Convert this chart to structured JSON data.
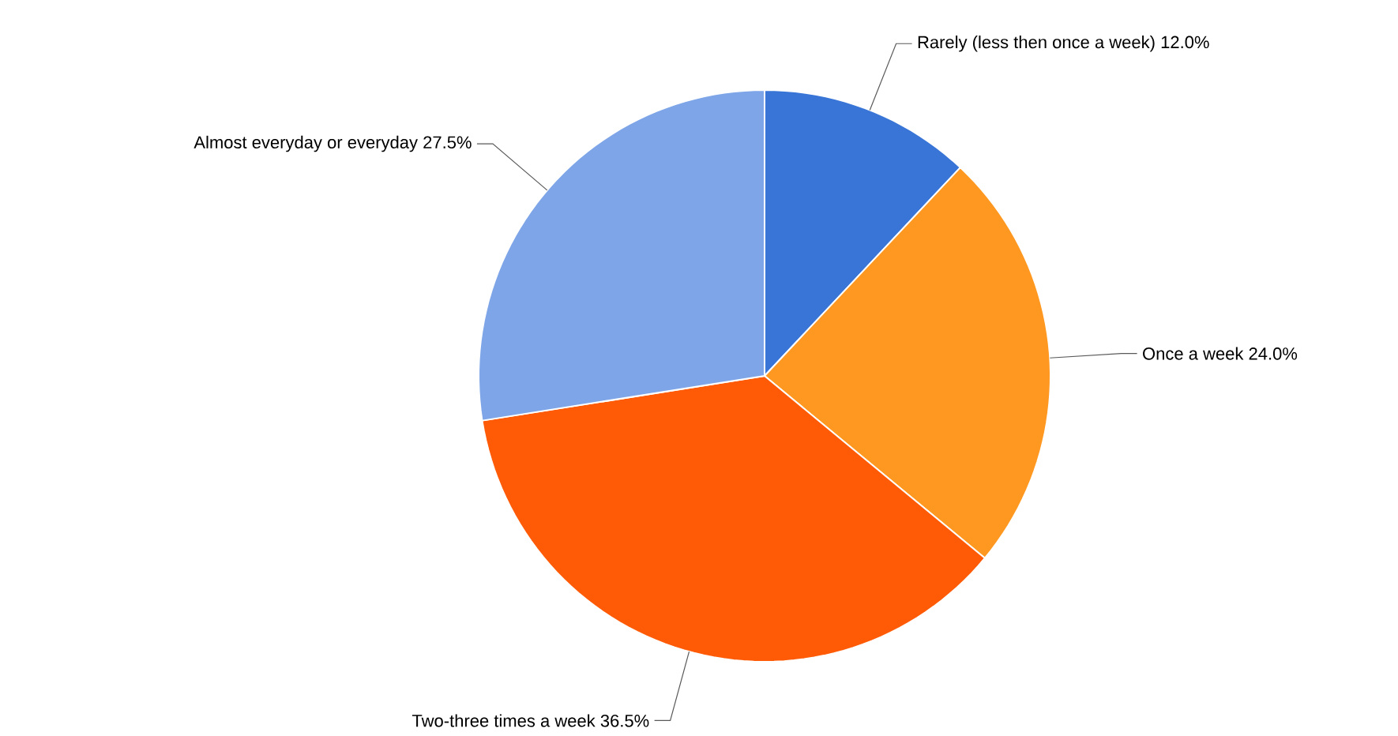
{
  "chart_data": {
    "type": "pie",
    "categories": [
      "Rarely (less then once a week)",
      "Once a week",
      "Two-three times a week",
      "Almost everyday or everyday"
    ],
    "values": [
      12.0,
      24.0,
      36.5,
      27.5
    ],
    "value_labels": [
      "12.0%",
      "24.0%",
      "36.5%",
      "27.5%"
    ],
    "colors": [
      "#3875d7",
      "#ff9820",
      "#ff5a05",
      "#7da5e8"
    ]
  }
}
